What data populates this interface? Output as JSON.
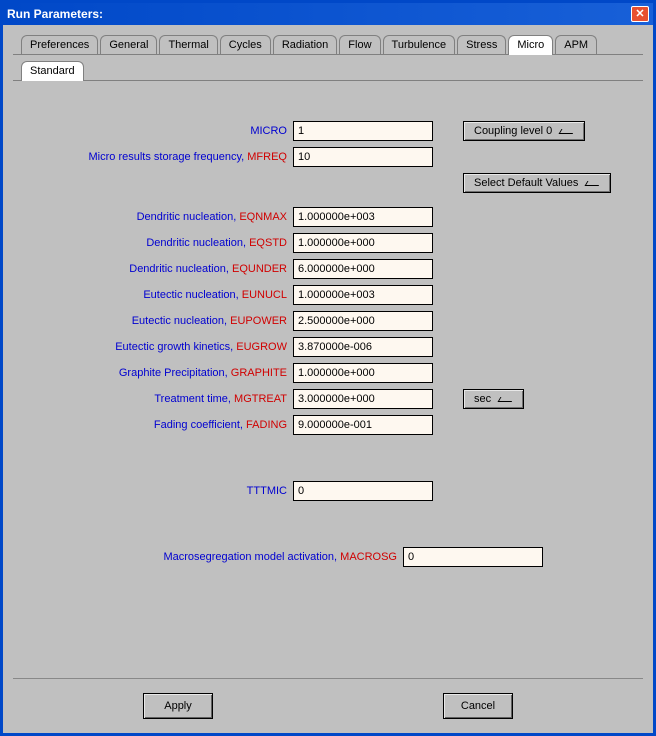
{
  "window": {
    "title": "Run Parameters:"
  },
  "tabs": {
    "main": [
      "Preferences",
      "General",
      "Thermal",
      "Cycles",
      "Radiation",
      "Flow",
      "Turbulence",
      "Stress",
      "Micro",
      "APM"
    ],
    "active": "Micro",
    "sub": [
      "Standard"
    ],
    "sub_active": "Standard"
  },
  "buttons": {
    "coupling": "Coupling level 0",
    "select_defaults": "Select Default Values",
    "sec": "sec",
    "apply": "Apply",
    "cancel": "Cancel"
  },
  "fields": {
    "micro": {
      "label": "MICRO",
      "code": "",
      "value": "1"
    },
    "mfreq": {
      "label": "Micro results storage frequency,",
      "code": "MFREQ",
      "value": "10"
    },
    "eqnmax": {
      "label": "Dendritic nucleation,",
      "code": "EQNMAX",
      "value": "1.000000e+003"
    },
    "eqstd": {
      "label": "Dendritic nucleation,",
      "code": "EQSTD",
      "value": "1.000000e+000"
    },
    "equnder": {
      "label": "Dendritic nucleation,",
      "code": "EQUNDER",
      "value": "6.000000e+000"
    },
    "eunucl": {
      "label": "Eutectic nucleation,",
      "code": "EUNUCL",
      "value": "1.000000e+003"
    },
    "eupower": {
      "label": "Eutectic nucleation,",
      "code": "EUPOWER",
      "value": "2.500000e+000"
    },
    "eugrow": {
      "label": "Eutectic growth kinetics,",
      "code": "EUGROW",
      "value": "3.870000e-006"
    },
    "graphite": {
      "label": "Graphite Precipitation,",
      "code": "GRAPHITE",
      "value": "1.000000e+000"
    },
    "mgtreat": {
      "label": "Treatment time,",
      "code": "MGTREAT",
      "value": "3.000000e+000"
    },
    "fading": {
      "label": "Fading coefficient,",
      "code": "FADING",
      "value": "9.000000e-001"
    },
    "tttmic": {
      "label": "TTTMIC",
      "code": "",
      "value": "0"
    },
    "macrosg": {
      "label": "Macrosegregation model activation,",
      "code": "MACROSG",
      "value": "0"
    }
  }
}
